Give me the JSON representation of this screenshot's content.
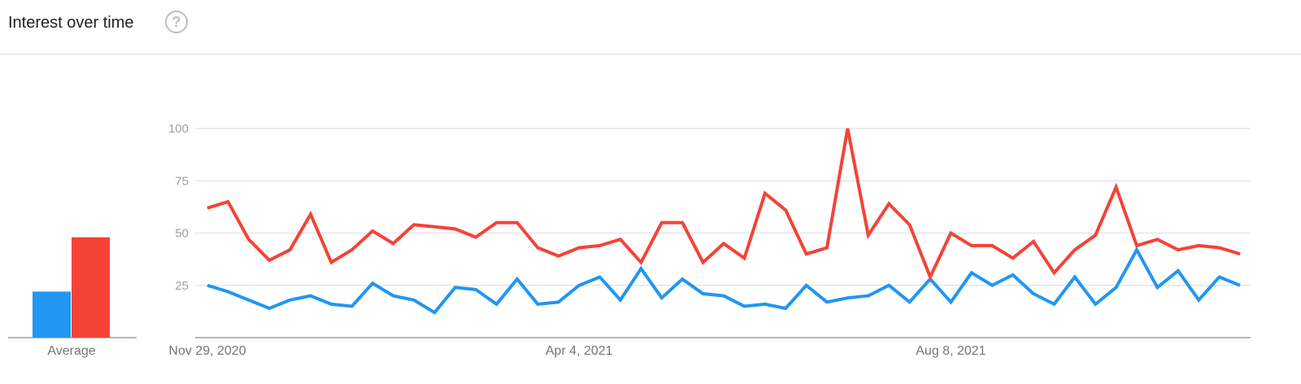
{
  "header": {
    "title": "Interest over time",
    "help_icon": "question-circle-icon"
  },
  "chart_data": {
    "type": "line",
    "title": "Interest over time",
    "ylim": [
      0,
      100
    ],
    "yticks": [
      "25",
      "50",
      "75",
      "100"
    ],
    "xticks": [
      "Nov 29, 2020",
      "Apr 4, 2021",
      "Aug 8, 2021"
    ],
    "x_start": "2020-11-29",
    "x_interval": "weekly",
    "grid": true,
    "colors": [
      "#2196f3",
      "#f44336"
    ],
    "series": [
      {
        "values": [
          25,
          22,
          18,
          14,
          18,
          20,
          16,
          15,
          26,
          20,
          18,
          12,
          24,
          23,
          16,
          28,
          16,
          17,
          25,
          29,
          18,
          33,
          19,
          28,
          21,
          20,
          15,
          16,
          14,
          25,
          17,
          19,
          20,
          25,
          17,
          28,
          17,
          31,
          25,
          30,
          21,
          16,
          29,
          16,
          24,
          42,
          24,
          32,
          18,
          29,
          25
        ]
      },
      {
        "values": [
          62,
          65,
          47,
          37,
          42,
          59,
          36,
          42,
          51,
          45,
          54,
          53,
          52,
          48,
          55,
          55,
          43,
          39,
          43,
          44,
          47,
          36,
          55,
          55,
          36,
          45,
          38,
          69,
          61,
          40,
          43,
          100,
          49,
          64,
          54,
          29,
          50,
          44,
          44,
          38,
          46,
          31,
          42,
          49,
          72,
          44,
          47,
          42,
          44,
          43,
          40
        ]
      }
    ],
    "average": {
      "label": "Average",
      "values": [
        22,
        48
      ]
    }
  }
}
